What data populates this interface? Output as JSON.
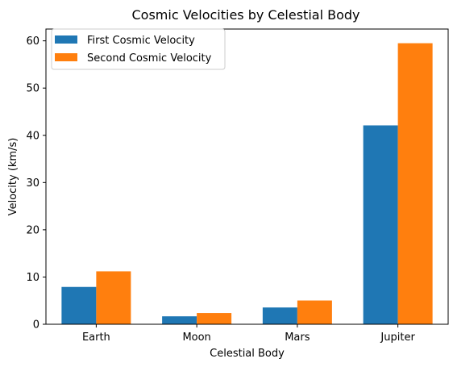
{
  "chart_data": {
    "type": "bar",
    "title": "Cosmic Velocities by Celestial Body",
    "xlabel": "Celestial Body",
    "ylabel": "Velocity (km/s)",
    "categories": [
      "Earth",
      "Moon",
      "Mars",
      "Jupiter"
    ],
    "series": [
      {
        "name": "First Cosmic Velocity",
        "color": "#1f77b4",
        "values": [
          7.9,
          1.68,
          3.55,
          42.1
        ]
      },
      {
        "name": "Second Cosmic Velocity",
        "color": "#ff7f0e",
        "values": [
          11.2,
          2.38,
          5.03,
          59.5
        ]
      }
    ],
    "ylim": [
      0,
      62.5
    ],
    "yticks": [
      0,
      10,
      20,
      30,
      40,
      50,
      60
    ],
    "grid": false,
    "legend_position": "top-left"
  }
}
